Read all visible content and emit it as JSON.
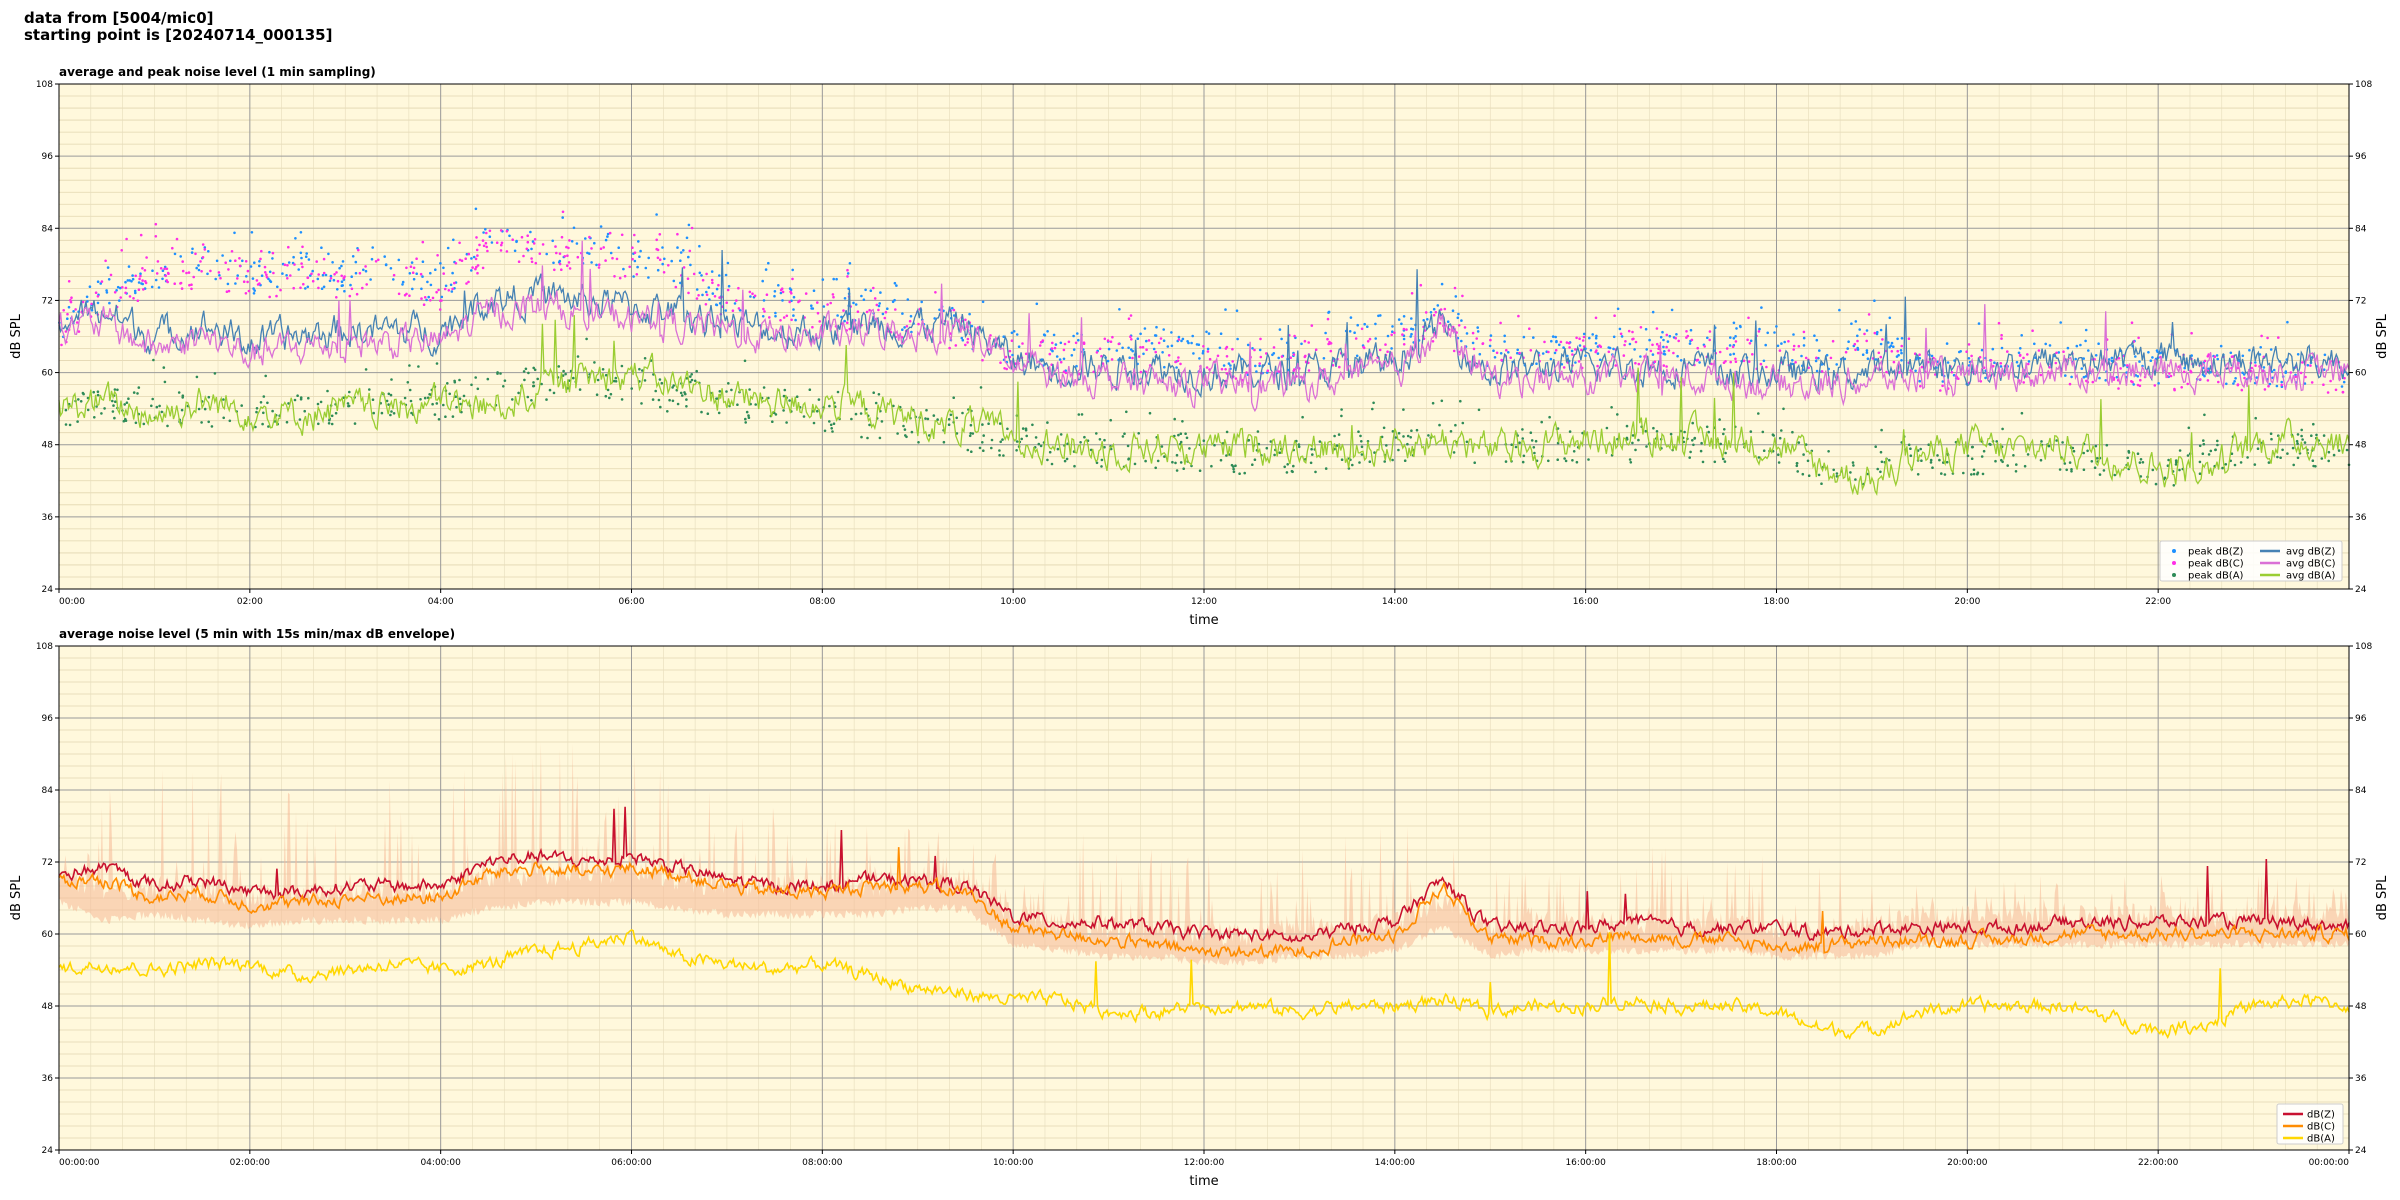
{
  "header": {
    "line1": "data from [5004/mic0]",
    "line2": "starting point is [20240714_000135]"
  },
  "colors": {
    "background": "#fff8dc",
    "peak_z": "#1e90ff",
    "peak_c": "#ff2ee6",
    "peak_a": "#2e8b57",
    "avg_z": "#4682b4",
    "avg_c": "#da70d6",
    "avg_a": "#9acd32",
    "line_z": "#c8102e",
    "line_c": "#ff8c00",
    "line_a": "#ffd700",
    "envelope": "#f5b895"
  },
  "chart_data": [
    {
      "type": "line",
      "title": "average and peak noise level (1 min sampling)",
      "xlabel": "time",
      "ylabel": "dB SPL",
      "ylim": [
        24,
        108
      ],
      "xlim_hours": [
        0,
        24
      ],
      "yticks": [
        24,
        36,
        48,
        60,
        72,
        84,
        96,
        108
      ],
      "xticks": [
        "00:00",
        "02:00",
        "04:00",
        "06:00",
        "08:00",
        "10:00",
        "12:00",
        "14:00",
        "16:00",
        "18:00",
        "20:00",
        "22:00"
      ],
      "grid": true,
      "legend_position": "bottom-right",
      "x_hours": [
        0,
        0.5,
        1,
        1.5,
        2,
        2.5,
        3,
        3.5,
        4,
        4.5,
        5,
        5.5,
        6,
        6.5,
        7,
        7.5,
        8,
        8.5,
        9,
        9.5,
        10,
        10.5,
        11,
        11.5,
        12,
        12.5,
        13,
        13.5,
        14,
        14.5,
        15,
        15.5,
        16,
        16.5,
        17,
        17.5,
        18,
        18.5,
        19,
        19.5,
        20,
        20.5,
        21,
        21.5,
        22,
        22.5,
        23,
        23.5,
        24
      ],
      "series": [
        {
          "name": "peak dB(Z)",
          "kind": "scatter",
          "color_key": "peak_z",
          "values": [
            71,
            77,
            80,
            81,
            79,
            80,
            79,
            80,
            77,
            85,
            84,
            83,
            82,
            81,
            76,
            75,
            74,
            74,
            72,
            70,
            67,
            66,
            67,
            67,
            66,
            65,
            66,
            68,
            70,
            72,
            66,
            66,
            67,
            68,
            67,
            68,
            67,
            66,
            68,
            64,
            64,
            65,
            65,
            64,
            64,
            64,
            64,
            63,
            63
          ]
        },
        {
          "name": "peak dB(C)",
          "kind": "scatter",
          "color_key": "peak_c",
          "values": [
            70,
            76,
            79,
            80,
            78,
            79,
            78,
            79,
            76,
            84,
            83,
            82,
            81,
            80,
            75,
            74,
            73,
            73,
            71,
            69,
            66,
            65,
            66,
            66,
            65,
            64,
            65,
            67,
            69,
            71,
            65,
            65,
            66,
            67,
            66,
            67,
            66,
            65,
            67,
            63,
            63,
            64,
            64,
            63,
            63,
            63,
            63,
            62,
            62
          ]
        },
        {
          "name": "peak dB(A)",
          "kind": "scatter",
          "color_key": "peak_a",
          "values": [
            56,
            58,
            57,
            57,
            56,
            57,
            57,
            59,
            58,
            60,
            61,
            62,
            61,
            59,
            58,
            57,
            56,
            55,
            54,
            53,
            51,
            50,
            50,
            50,
            49,
            49,
            49,
            50,
            51,
            52,
            50,
            51,
            51,
            51,
            51,
            51,
            51,
            47,
            47,
            49,
            49,
            49,
            49,
            48,
            46,
            49,
            50,
            50,
            50
          ]
        },
        {
          "name": "avg dB(Z)",
          "kind": "line",
          "color_key": "avg_z",
          "values": [
            69,
            70,
            66,
            68,
            65,
            66,
            67,
            67,
            67,
            72,
            73,
            72,
            71,
            70,
            68,
            67,
            67,
            68,
            68,
            68,
            62,
            61,
            61,
            61,
            60,
            60,
            60,
            61,
            62,
            68,
            60,
            61,
            61,
            61,
            61,
            60,
            60,
            60,
            60,
            61,
            61,
            61,
            62,
            62,
            62,
            62,
            62,
            62,
            62
          ]
        },
        {
          "name": "avg dB(C)",
          "kind": "line",
          "color_key": "avg_c",
          "values": [
            68,
            68,
            64,
            66,
            63,
            64,
            65,
            65,
            65,
            70,
            71,
            70,
            69,
            68,
            67,
            66,
            66,
            67,
            67,
            67,
            61,
            60,
            59,
            58,
            58,
            58,
            58,
            59,
            60,
            67,
            59,
            59,
            59,
            59,
            59,
            59,
            58,
            58,
            59,
            59,
            59,
            60,
            60,
            60,
            60,
            60,
            60,
            60,
            60
          ]
        },
        {
          "name": "avg dB(A)",
          "kind": "line",
          "color_key": "avg_a",
          "values": [
            54,
            55,
            53,
            55,
            54,
            53,
            54,
            54,
            55,
            54,
            57,
            59,
            60,
            58,
            56,
            55,
            55,
            54,
            52,
            51,
            50,
            48,
            47,
            48,
            47,
            48,
            48,
            47,
            48,
            49,
            47,
            48,
            49,
            49,
            49,
            49,
            48,
            44,
            42,
            46,
            48,
            47,
            48,
            46,
            44,
            44,
            48,
            49,
            48
          ]
        }
      ]
    },
    {
      "type": "line",
      "title": "average noise level (5 min with 15s min/max dB envelope)",
      "xlabel": "time",
      "ylabel": "dB SPL",
      "ylim": [
        24,
        108
      ],
      "xlim_hours": [
        0,
        24
      ],
      "yticks": [
        24,
        36,
        48,
        60,
        72,
        84,
        96,
        108
      ],
      "xticks": [
        "00:00:00",
        "02:00:00",
        "04:00:00",
        "06:00:00",
        "08:00:00",
        "10:00:00",
        "12:00:00",
        "14:00:00",
        "16:00:00",
        "18:00:00",
        "20:00:00",
        "22:00:00",
        "00:00:00"
      ],
      "grid": true,
      "legend_position": "bottom-right",
      "x_hours": [
        0,
        0.5,
        1,
        1.5,
        2,
        2.5,
        3,
        3.5,
        4,
        4.5,
        5,
        5.5,
        6,
        6.5,
        7,
        7.5,
        8,
        8.5,
        9,
        9.5,
        10,
        10.5,
        11,
        11.5,
        12,
        12.5,
        13,
        13.5,
        14,
        14.5,
        15,
        15.5,
        16,
        16.5,
        17,
        17.5,
        18,
        18.5,
        19,
        19.5,
        20,
        20.5,
        21,
        21.5,
        22,
        22.5,
        23,
        23.5,
        24
      ],
      "envelope_max": [
        72,
        84,
        86,
        86,
        84,
        86,
        84,
        86,
        84,
        92,
        90,
        90,
        88,
        86,
        82,
        80,
        78,
        78,
        76,
        74,
        72,
        74,
        76,
        74,
        72,
        72,
        72,
        76,
        78,
        76,
        70,
        70,
        72,
        74,
        72,
        74,
        72,
        70,
        72,
        70,
        68,
        70,
        70,
        68,
        68,
        68,
        68,
        68,
        66
      ],
      "envelope_min": [
        66,
        63,
        64,
        63,
        62,
        63,
        63,
        63,
        63,
        65,
        66,
        66,
        66,
        65,
        64,
        64,
        64,
        64,
        65,
        65,
        59,
        58,
        57,
        57,
        56,
        56,
        57,
        57,
        58,
        62,
        57,
        58,
        58,
        58,
        58,
        58,
        57,
        57,
        57,
        59,
        59,
        59,
        59,
        59,
        59,
        59,
        59,
        59,
        59
      ],
      "series": [
        {
          "name": "dB(Z)",
          "kind": "line",
          "color_key": "line_z",
          "values": [
            70,
            71,
            68,
            69,
            67,
            67,
            68,
            68,
            68,
            72,
            73,
            72,
            73,
            71,
            69,
            68,
            68,
            69,
            69,
            68,
            63,
            62,
            62,
            61,
            60,
            60,
            59,
            61,
            62,
            69,
            61,
            61,
            61,
            62,
            61,
            61,
            61,
            60,
            61,
            61,
            61,
            61,
            62,
            62,
            62,
            62,
            62,
            62,
            61
          ]
        },
        {
          "name": "dB(C)",
          "kind": "line",
          "color_key": "line_c",
          "values": [
            69,
            69,
            66,
            67,
            65,
            65,
            66,
            66,
            66,
            70,
            71,
            70,
            71,
            70,
            68,
            67,
            67,
            68,
            68,
            67,
            61,
            60,
            59,
            58,
            57,
            57,
            57,
            59,
            60,
            68,
            59,
            59,
            59,
            60,
            59,
            59,
            58,
            58,
            59,
            59,
            59,
            59,
            60,
            60,
            60,
            60,
            60,
            60,
            60
          ]
        },
        {
          "name": "dB(A)",
          "kind": "line",
          "color_key": "line_a",
          "values": [
            54,
            55,
            54,
            55,
            55,
            53,
            54,
            55,
            54,
            55,
            57,
            58,
            60,
            56,
            55,
            54,
            55,
            53,
            51,
            50,
            49,
            49,
            47,
            47,
            48,
            48,
            47,
            48,
            48,
            49,
            47,
            48,
            48,
            49,
            48,
            48,
            47,
            44,
            44,
            47,
            48,
            48,
            48,
            46,
            44,
            45,
            48,
            49,
            48
          ]
        }
      ]
    }
  ]
}
